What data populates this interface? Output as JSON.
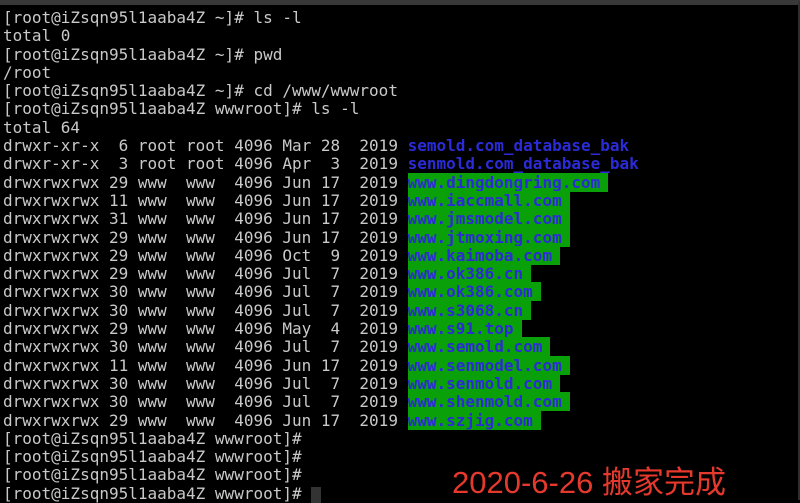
{
  "terminal": {
    "host_label": "iZsqn95l1aaba4Z",
    "colors": {
      "background": "#000000",
      "foreground": "#c9c9c9",
      "directory_blue": "#2b2bd7",
      "world_writable_green": "#0aa00a",
      "frame_gray": "#383838"
    },
    "lines": [
      {
        "text": "[root@iZsqn95l1aaba4Z ~]# ls -l"
      },
      {
        "text": "total 0"
      },
      {
        "text": "[root@iZsqn95l1aaba4Z ~]# pwd"
      },
      {
        "text": "/root"
      },
      {
        "text": "[root@iZsqn95l1aaba4Z ~]# cd /www/wwwroot"
      },
      {
        "text": "[root@iZsqn95l1aaba4Z wwwroot]# ls -l"
      },
      {
        "text": "total 64"
      },
      {
        "meta": "drwxr-xr-x  6 root root 4096 Mar 28  2019 ",
        "name": "semold.com_database_bak",
        "style": "dir"
      },
      {
        "meta": "drwxr-xr-x  3 root root 4096 Apr  3  2019 ",
        "name": "senmold.com_database_bak",
        "style": "dir"
      },
      {
        "meta": "drwxrwxrwx 29 www  www  4096 Jun 17  2019 ",
        "name": "www.dingdongring.com",
        "style": "dir-ow"
      },
      {
        "meta": "drwxrwxrwx 11 www  www  4096 Jun 17  2019 ",
        "name": "www.iaccmall.com",
        "style": "dir-ow"
      },
      {
        "meta": "drwxrwxrwx 31 www  www  4096 Jun 17  2019 ",
        "name": "www.jmsmodel.com",
        "style": "dir-ow"
      },
      {
        "meta": "drwxrwxrwx 29 www  www  4096 Jun 17  2019 ",
        "name": "www.jtmoxing.com",
        "style": "dir-ow"
      },
      {
        "meta": "drwxrwxrwx 29 www  www  4096 Oct  9  2019 ",
        "name": "www.kaimoba.com",
        "style": "dir-ow"
      },
      {
        "meta": "drwxrwxrwx 29 www  www  4096 Jul  7  2019 ",
        "name": "www.ok386.cn",
        "style": "dir-ow"
      },
      {
        "meta": "drwxrwxrwx 30 www  www  4096 Jul  7  2019 ",
        "name": "www.ok386.com",
        "style": "dir-ow"
      },
      {
        "meta": "drwxrwxrwx 30 www  www  4096 Jul  7  2019 ",
        "name": "www.s3068.cn",
        "style": "dir-ow"
      },
      {
        "meta": "drwxrwxrwx 29 www  www  4096 May  4  2019 ",
        "name": "www.s91.top",
        "style": "dir-ow"
      },
      {
        "meta": "drwxrwxrwx 30 www  www  4096 Jul  7  2019 ",
        "name": "www.semold.com",
        "style": "dir-ow"
      },
      {
        "meta": "drwxrwxrwx 11 www  www  4096 Jun 17  2019 ",
        "name": "www.senmodel.com",
        "style": "dir-ow"
      },
      {
        "meta": "drwxrwxrwx 30 www  www  4096 Jul  7  2019 ",
        "name": "www.senmold.com",
        "style": "dir-ow"
      },
      {
        "meta": "drwxrwxrwx 30 www  www  4096 Jul  7  2019 ",
        "name": "www.shenmold.com",
        "style": "dir-ow"
      },
      {
        "meta": "drwxrwxrwx 29 www  www  4096 Jun 17  2019 ",
        "name": "www.szjig.com",
        "style": "dir-ow"
      },
      {
        "text": "[root@iZsqn95l1aaba4Z wwwroot]# "
      },
      {
        "text": "[root@iZsqn95l1aaba4Z wwwroot]# "
      },
      {
        "text": "[root@iZsqn95l1aaba4Z wwwroot]# "
      },
      {
        "text": "[root@iZsqn95l1aaba4Z wwwroot]# ",
        "cursor": true
      }
    ]
  },
  "annotation": {
    "text": "2020-6-26 搬家完成",
    "color": "#e6392d"
  }
}
